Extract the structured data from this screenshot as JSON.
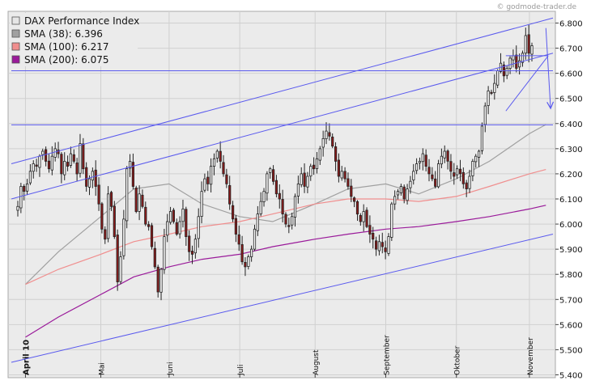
{
  "watermark": "© godmode-trader.de",
  "legend": [
    {
      "label": "DAX Performance Index",
      "color": "#e6e6e6"
    },
    {
      "label": "SMA (38): 6.396",
      "color": "#a0a0a0"
    },
    {
      "label": "SMA (100): 6.217",
      "color": "#f08e8e"
    },
    {
      "label": "SMA (200): 6.075",
      "color": "#9a1a9a"
    }
  ],
  "colors": {
    "up_candle": "#ffffff",
    "down_candle": "#8b1a1a",
    "wick": "#222222",
    "trendline": "#5a5aee",
    "sma38": "#a0a0a0",
    "sma100": "#f08e8e",
    "sma200": "#9a1a9a"
  },
  "chart_data": {
    "type": "candlestick",
    "title": "DAX Performance Index",
    "y_axis": {
      "range": [
        5400,
        6800
      ],
      "ticks": [
        5400,
        5500,
        5600,
        5700,
        5800,
        5900,
        6000,
        6100,
        6200,
        6300,
        6400,
        6500,
        6600,
        6700,
        6800
      ],
      "tick_labels": [
        "5.400",
        "5.500",
        "5.600",
        "5.700",
        "5.800",
        "5.900",
        "6.000",
        "6.100",
        "6.200",
        "6.300",
        "6.400",
        "6.500",
        "6.600",
        "6.700",
        "6.800"
      ],
      "position": "right"
    },
    "x_axis": {
      "range": [
        "2010-03-26",
        "2010-11-11"
      ],
      "tick_dates": [
        "2010-04-01",
        "2010-05-03",
        "2010-06-01",
        "2010-07-01",
        "2010-08-02",
        "2010-09-01",
        "2010-10-01",
        "2010-11-01"
      ],
      "tick_labels": [
        "April 10",
        "Mai",
        "Juni",
        "Juli",
        "August",
        "September",
        "Oktober",
        "November"
      ]
    },
    "grid": true,
    "legend_placement": "top-left",
    "closes": [
      6070,
      6150,
      6130,
      6160,
      6210,
      6240,
      6230,
      6270,
      6290,
      6250,
      6220,
      6270,
      6300,
      6280,
      6200,
      6250,
      6230,
      6280,
      6250,
      6200,
      6320,
      6220,
      6150,
      6180,
      6210,
      6150,
      6080,
      5980,
      5940,
      6120,
      6070,
      5950,
      5770,
      5870,
      6020,
      6220,
      6250,
      6150,
      6050,
      6120,
      6070,
      6000,
      5990,
      5910,
      5830,
      5730,
      5820,
      5950,
      6010,
      6050,
      6010,
      5960,
      6010,
      6060,
      5950,
      5890,
      5880,
      5940,
      6030,
      6130,
      6180,
      6160,
      6230,
      6260,
      6290,
      6250,
      6200,
      6160,
      6080,
      6020,
      5960,
      5920,
      5850,
      5830,
      5870,
      5900,
      5980,
      6040,
      6090,
      6130,
      6200,
      6220,
      6170,
      6120,
      6100,
      6040,
      6000,
      5990,
      6030,
      6110,
      6160,
      6200,
      6150,
      6190,
      6230,
      6220,
      6260,
      6300,
      6340,
      6370,
      6350,
      6310,
      6250,
      6190,
      6210,
      6180,
      6150,
      6110,
      6090,
      6040,
      6010,
      6050,
      5990,
      5960,
      5940,
      5900,
      5930,
      5910,
      5890,
      5950,
      6080,
      6110,
      6130,
      6150,
      6100,
      6140,
      6170,
      6210,
      6240,
      6250,
      6280,
      6230,
      6200,
      6180,
      6150,
      6240,
      6270,
      6290,
      6250,
      6210,
      6190,
      6220,
      6200,
      6160,
      6140,
      6190,
      6250,
      6270,
      6290,
      6390,
      6470,
      6530,
      6520,
      6560,
      6610,
      6640,
      6590,
      6620,
      6660,
      6670,
      6620,
      6650,
      6680,
      6750,
      6680,
      6710
    ],
    "series": [
      {
        "name": "SMA (38)",
        "end_value": 6396,
        "x": [
          "2010-04-01",
          "2010-04-15",
          "2010-05-03",
          "2010-05-17",
          "2010-06-01",
          "2010-06-15",
          "2010-07-01",
          "2010-07-15",
          "2010-08-02",
          "2010-08-16",
          "2010-09-01",
          "2010-09-15",
          "2010-10-01",
          "2010-10-15",
          "2010-11-01",
          "2010-11-08"
        ],
        "values": [
          5760,
          5890,
          6030,
          6140,
          6160,
          6080,
          6030,
          6010,
          6080,
          6140,
          6160,
          6120,
          6180,
          6250,
          6360,
          6396
        ]
      },
      {
        "name": "SMA (100)",
        "end_value": 6217,
        "x": [
          "2010-04-01",
          "2010-04-15",
          "2010-05-03",
          "2010-05-17",
          "2010-06-01",
          "2010-06-15",
          "2010-07-01",
          "2010-07-15",
          "2010-08-02",
          "2010-08-16",
          "2010-09-01",
          "2010-09-15",
          "2010-10-01",
          "2010-10-15",
          "2010-11-01",
          "2010-11-08"
        ],
        "values": [
          5760,
          5820,
          5880,
          5930,
          5960,
          5990,
          6010,
          6040,
          6080,
          6100,
          6100,
          6090,
          6110,
          6150,
          6200,
          6217
        ]
      },
      {
        "name": "SMA (200)",
        "end_value": 6075,
        "x": [
          "2010-04-01",
          "2010-04-15",
          "2010-05-03",
          "2010-05-17",
          "2010-06-01",
          "2010-06-15",
          "2010-07-01",
          "2010-07-15",
          "2010-08-02",
          "2010-08-16",
          "2010-09-01",
          "2010-09-15",
          "2010-10-01",
          "2010-10-15",
          "2010-11-01",
          "2010-11-08"
        ],
        "values": [
          5550,
          5630,
          5720,
          5790,
          5830,
          5860,
          5880,
          5910,
          5940,
          5960,
          5980,
          5990,
          6010,
          6030,
          6060,
          6075
        ]
      }
    ],
    "trendlines": [
      {
        "kind": "channel-upper",
        "from": [
          "2010-03-26",
          6240
        ],
        "to": [
          "2010-11-11",
          6820
        ]
      },
      {
        "kind": "channel-middle",
        "from": [
          "2010-03-26",
          6100
        ],
        "to": [
          "2010-11-11",
          6680
        ]
      },
      {
        "kind": "channel-lower",
        "from": [
          "2010-03-26",
          5450
        ],
        "to": [
          "2010-11-11",
          5960
        ]
      },
      {
        "kind": "horizontal",
        "from": [
          "2010-03-26",
          6610
        ],
        "to": [
          "2010-11-11",
          6610
        ]
      },
      {
        "kind": "horizontal",
        "from": [
          "2010-03-26",
          6395
        ],
        "to": [
          "2010-11-11",
          6395
        ]
      },
      {
        "kind": "wedge",
        "from": [
          "2010-10-22",
          6450
        ],
        "to": [
          "2010-11-09",
          6670
        ]
      },
      {
        "kind": "wedge",
        "from": [
          "2010-10-22",
          6670
        ],
        "to": [
          "2010-11-09",
          6670
        ]
      },
      {
        "kind": "arrow",
        "from": [
          "2010-11-08",
          6780
        ],
        "to": [
          "2010-11-10",
          6460
        ]
      }
    ]
  }
}
